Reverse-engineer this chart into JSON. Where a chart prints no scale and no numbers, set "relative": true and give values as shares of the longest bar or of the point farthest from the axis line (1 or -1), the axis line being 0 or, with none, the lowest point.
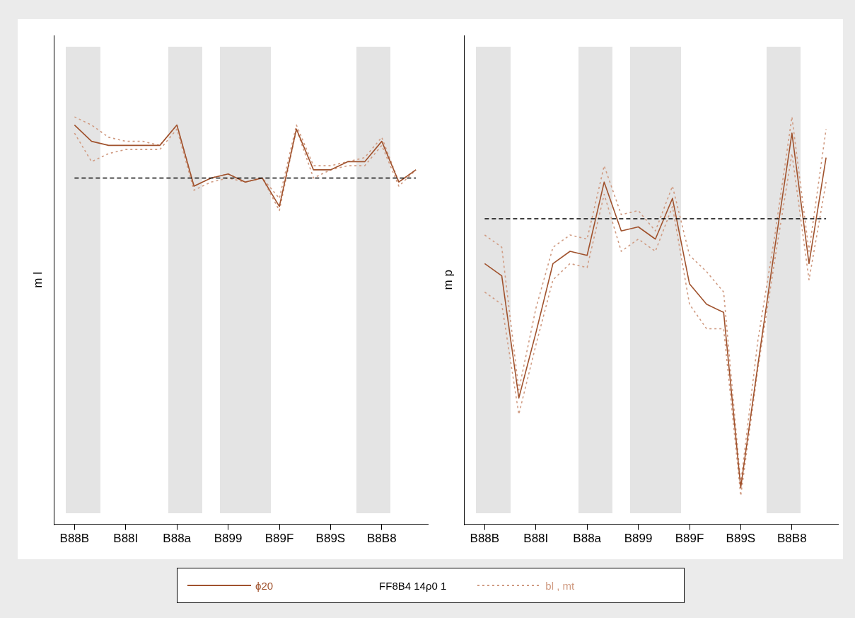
{
  "chart_data": [
    {
      "type": "line",
      "relative": true,
      "ylabel": "m l",
      "legend": "bottom",
      "marker": "none",
      "annotations": [
        "FF8B4 14ρ0 1"
      ],
      "categories": [
        "B88B",
        null,
        null,
        "B88I",
        null,
        null,
        "B88a",
        null,
        null,
        "B899",
        null,
        null,
        "B89F",
        null,
        null,
        "B89S",
        null,
        null,
        "B8B8",
        null,
        null
      ],
      "ref_lines": [
        {
          "axis": "y",
          "value": 0.85,
          "color": "#000000",
          "line_style": "dashed"
        }
      ],
      "series": [
        {
          "name": "ϕ20",
          "color": "#a0522d",
          "line_style": "solid",
          "values": [
            0.98,
            0.94,
            0.93,
            0.93,
            0.93,
            0.93,
            0.98,
            0.83,
            0.85,
            0.86,
            0.84,
            0.85,
            0.78,
            0.97,
            0.87,
            0.87,
            0.89,
            0.89,
            0.94,
            0.84,
            0.87
          ]
        },
        {
          "name": "bl , mt",
          "color": "#d09b82",
          "line_style": "dotted",
          "values": [
            1,
            0.98,
            0.95,
            0.94,
            0.94,
            0.93,
            0.98,
            0.83,
            0.85,
            0.86,
            0.84,
            0.85,
            0.8,
            0.98,
            0.88,
            0.88,
            0.89,
            0.9,
            0.95,
            0.84,
            0.87
          ]
        },
        {
          "color": "#d09b82",
          "line_style": "dotted",
          "values": [
            0.96,
            0.89,
            0.91,
            0.92,
            0.92,
            0.92,
            0.97,
            0.82,
            0.84,
            0.85,
            0.84,
            0.85,
            0.77,
            0.97,
            0.85,
            0.87,
            0.88,
            0.88,
            0.93,
            0.83,
            0.87
          ]
        }
      ]
    },
    {
      "type": "line",
      "relative": true,
      "ylabel": "m p",
      "marker": "none",
      "categories": [
        "B88B",
        null,
        null,
        "B88I",
        null,
        null,
        "B88a",
        null,
        null,
        "B899",
        null,
        null,
        "B89F",
        null,
        null,
        "B89S",
        null,
        null,
        "B8B8",
        null,
        null
      ],
      "ref_lines": [
        {
          "axis": "y",
          "value": 0.75,
          "color": "#000000",
          "line_style": "dashed"
        }
      ],
      "series": [
        {
          "color": "#a0522d",
          "line_style": "solid",
          "values": [
            0.64,
            0.61,
            0.31,
            0.47,
            0.64,
            0.67,
            0.66,
            0.84,
            0.72,
            0.73,
            0.7,
            0.8,
            0.59,
            0.54,
            0.52,
            0.09,
            0.39,
            0.68,
            0.96,
            0.64,
            0.9
          ]
        },
        {
          "color": "#d09b82",
          "line_style": "dotted",
          "values": [
            0.71,
            0.68,
            0.33,
            0.53,
            0.68,
            0.71,
            0.7,
            0.88,
            0.76,
            0.77,
            0.72,
            0.83,
            0.66,
            0.62,
            0.57,
            0.1,
            0.45,
            0.71,
            1,
            0.67,
            0.97
          ]
        },
        {
          "color": "#d09b82",
          "line_style": "dotted",
          "values": [
            0.57,
            0.54,
            0.27,
            0.44,
            0.6,
            0.64,
            0.63,
            0.81,
            0.67,
            0.7,
            0.67,
            0.78,
            0.54,
            0.48,
            0.48,
            0.07,
            0.38,
            0.65,
            0.91,
            0.6,
            0.84
          ]
        }
      ]
    }
  ]
}
